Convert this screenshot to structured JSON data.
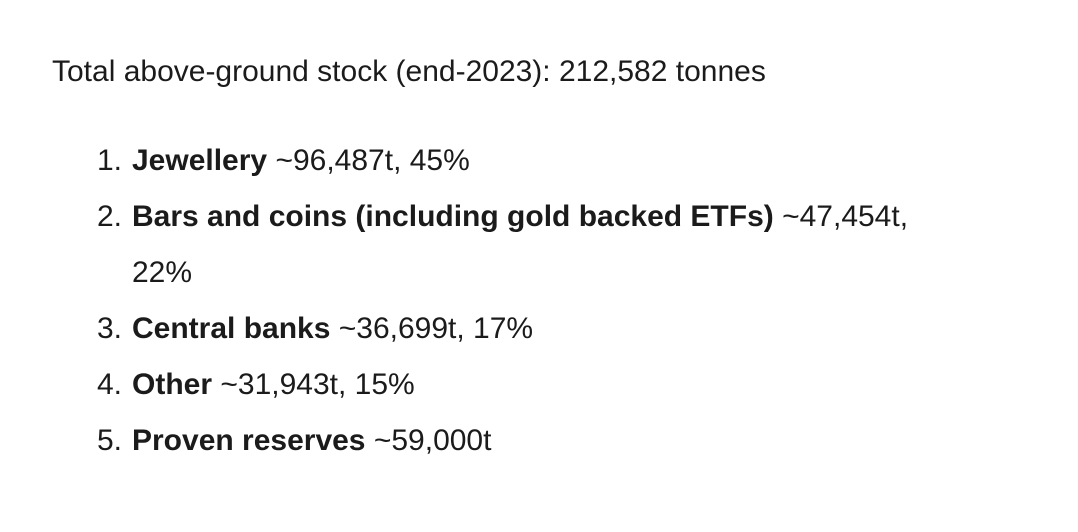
{
  "page": {
    "background_color": "#ffffff",
    "text_color": "#1b1b1b"
  },
  "heading": {
    "text": "Total above-ground stock (end-2023): 212,582 tonnes"
  },
  "stock_list": {
    "items": [
      {
        "number": "1.",
        "label": "Jewellery",
        "detail": "~96,487t, 45%"
      },
      {
        "number": "2.",
        "label": "Bars and coins (including gold backed ETFs)",
        "detail": "~47,454t,\n22%"
      },
      {
        "number": "3.",
        "label": "Central banks",
        "detail": "~36,699t, 17%"
      },
      {
        "number": "4.",
        "label": "Other",
        "detail": "~31,943t, 15%"
      },
      {
        "number": "5.",
        "label": "Proven reserves",
        "detail": "~59,000t"
      }
    ]
  }
}
